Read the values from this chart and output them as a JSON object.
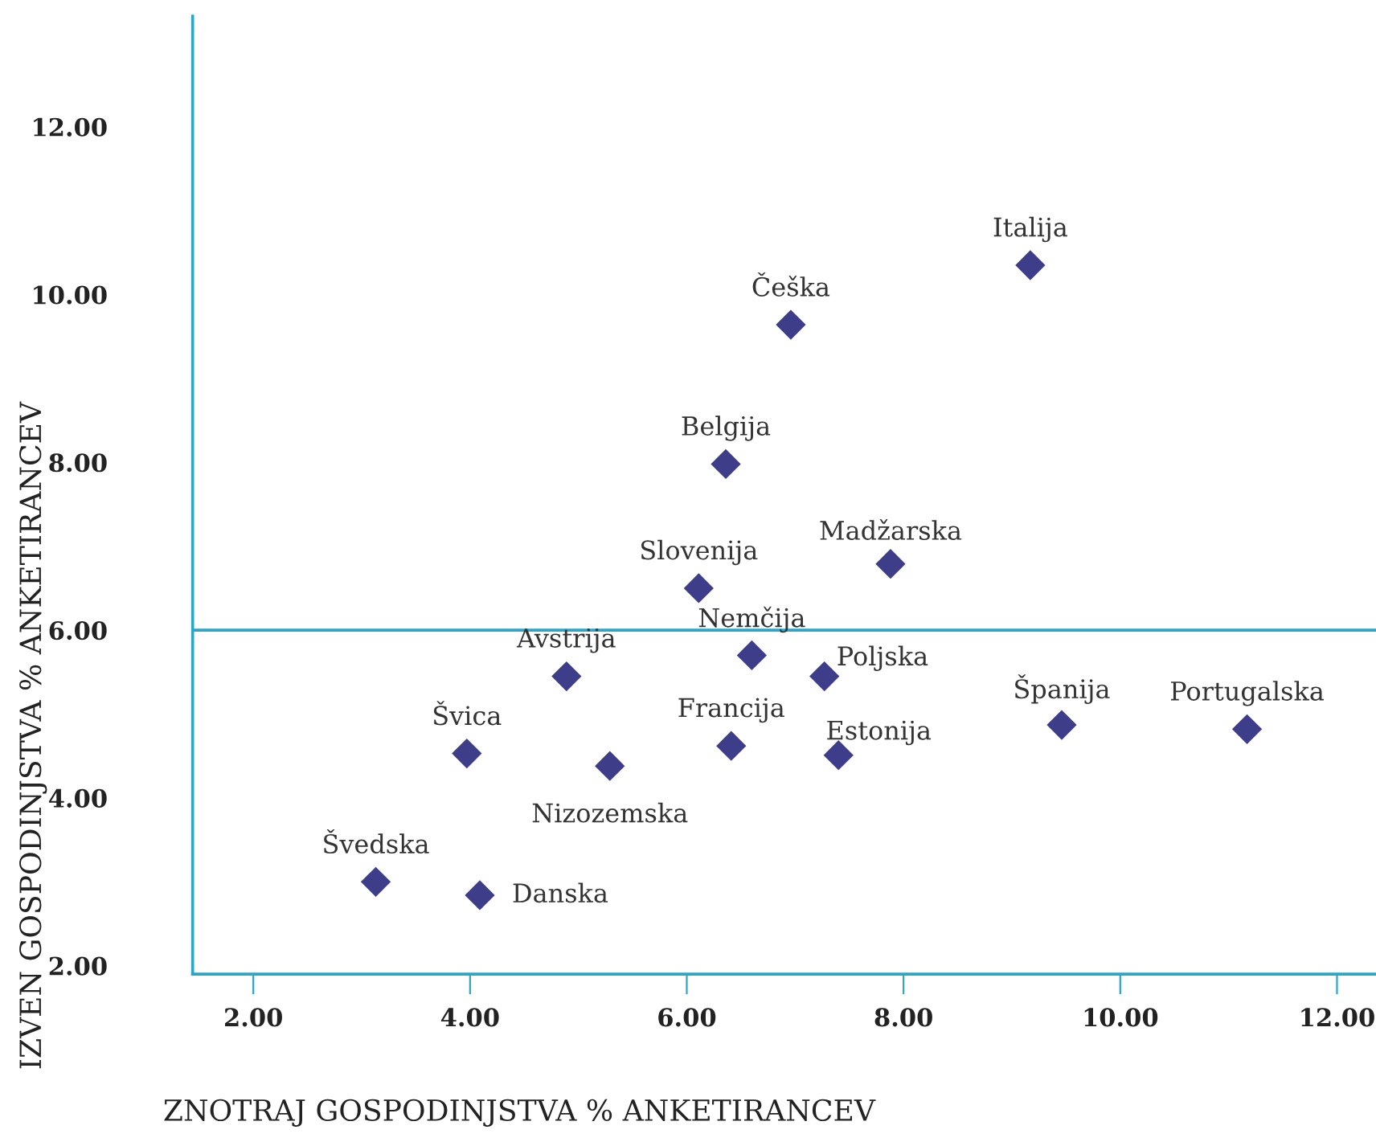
{
  "chart_data": {
    "type": "scatter",
    "xlabel": "ZNOTRAJ GOSPODINJSTVA % ANKETIRANCEV",
    "ylabel": "IZVEN GOSPODINJSTVA % ANKETIRANCEV",
    "x": [
      9.17,
      6.96,
      6.36,
      7.88,
      6.11,
      6.6,
      7.27,
      4.89,
      3.97,
      6.41,
      7.4,
      5.29,
      9.46,
      11.17,
      3.13,
      4.09
    ],
    "series": [
      {
        "color": "#3d3d8a",
        "values": [
          10.35,
          9.64,
          7.98,
          6.79,
          6.5,
          5.7,
          5.45,
          5.45,
          4.53,
          4.62,
          4.51,
          4.38,
          4.87,
          4.82,
          3.0,
          2.84
        ]
      }
    ],
    "annotations": [
      {
        "text": "Italija",
        "x": 9.17,
        "y": 10.35
      },
      {
        "text": "Češka",
        "x": 6.96,
        "y": 9.64
      },
      {
        "text": "Belgija",
        "x": 6.36,
        "y": 7.98
      },
      {
        "text": "Madžarska",
        "x": 7.88,
        "y": 6.79
      },
      {
        "text": "Slovenija",
        "x": 6.11,
        "y": 6.5
      },
      {
        "text": "Nemčija",
        "x": 6.6,
        "y": 5.7
      },
      {
        "text": "Poljska",
        "x": 7.27,
        "y": 5.45
      },
      {
        "text": "Avstrija",
        "x": 4.89,
        "y": 5.45
      },
      {
        "text": "Švica",
        "x": 3.97,
        "y": 4.53
      },
      {
        "text": "Francija",
        "x": 6.41,
        "y": 4.62
      },
      {
        "text": "Estonija",
        "x": 7.4,
        "y": 4.51
      },
      {
        "text": "Nizozemska",
        "x": 5.29,
        "y": 4.38
      },
      {
        "text": "Španija",
        "x": 9.46,
        "y": 4.87
      },
      {
        "text": "Portugalska",
        "x": 11.17,
        "y": 4.82
      },
      {
        "text": "Švedska",
        "x": 3.13,
        "y": 3.0
      },
      {
        "text": "Danska",
        "x": 4.09,
        "y": 2.84
      }
    ],
    "xlim": [
      1.44,
      12.36
    ],
    "ylim": [
      1.9,
      13.32
    ],
    "xticks": [
      {
        "value": 2,
        "label": "2.00"
      },
      {
        "value": 4,
        "label": "4.00"
      },
      {
        "value": 6,
        "label": "6.00"
      },
      {
        "value": 8,
        "label": "8.00"
      },
      {
        "value": 10,
        "label": "10.00"
      },
      {
        "value": 12,
        "label": "12.00"
      }
    ],
    "yticks": [
      {
        "value": 2,
        "label": "2.00"
      },
      {
        "value": 4,
        "label": "4.00"
      },
      {
        "value": 6,
        "label": "6.00"
      },
      {
        "value": 8,
        "label": "8.00"
      },
      {
        "value": 10,
        "label": "10.00"
      },
      {
        "value": 12,
        "label": "12.00"
      }
    ],
    "ref_lines": [
      {
        "axis": "y",
        "value": 6,
        "color": "#2aa6c9"
      }
    ],
    "marker": "diamond",
    "grid": false,
    "legend": false
  }
}
